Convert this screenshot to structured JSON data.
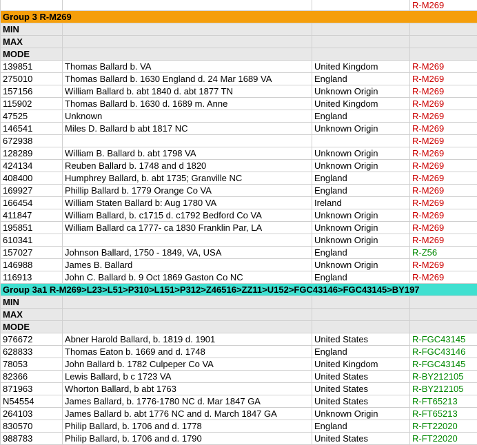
{
  "colors": {
    "group3_bg": "#f59e0b",
    "group3a1_bg": "#40e0d0",
    "stat_bg": "#e8e8e8",
    "border": "#d0d0d0",
    "hg_red": "#cc0000",
    "hg_green": "#008800"
  },
  "partial_row": {
    "hg": "R-M269",
    "hg_class": "hg-red"
  },
  "sections": [
    {
      "header": "Group 3 R-M269",
      "bg": "#f59e0b",
      "stats": [
        "MIN",
        "MAX",
        "MODE"
      ],
      "rows": [
        {
          "id": "139851",
          "name": "Thomas Ballard b. VA",
          "origin": "United Kingdom",
          "hg": "R-M269",
          "hg_class": "hg-red"
        },
        {
          "id": "275010",
          "name": "Thomas Ballard b. 1630 England d. 24 Mar 1689 VA",
          "origin": "England",
          "hg": "R-M269",
          "hg_class": "hg-red"
        },
        {
          "id": "157156",
          "name": "William Ballard b. abt 1840 d. abt 1877 TN",
          "origin": "Unknown Origin",
          "hg": "R-M269",
          "hg_class": "hg-red"
        },
        {
          "id": "115902",
          "name": "Thomas Ballard b. 1630 d. 1689 m. Anne",
          "origin": "United Kingdom",
          "hg": "R-M269",
          "hg_class": "hg-red"
        },
        {
          "id": "47525",
          "name": "Unknown",
          "origin": "England",
          "hg": "R-M269",
          "hg_class": "hg-red"
        },
        {
          "id": "146541",
          "name": "Miles D. Ballard b abt 1817 NC",
          "origin": "Unknown Origin",
          "hg": "R-M269",
          "hg_class": "hg-red"
        },
        {
          "id": "672938",
          "name": "",
          "origin": "",
          "hg": "R-M269",
          "hg_class": "hg-red"
        },
        {
          "id": "128289",
          "name": "William B. Ballard b. abt 1798 VA",
          "origin": "Unknown Origin",
          "hg": "R-M269",
          "hg_class": "hg-red"
        },
        {
          "id": "424134",
          "name": "Reuben Ballard b. 1748 and d 1820",
          "origin": "Unknown Origin",
          "hg": "R-M269",
          "hg_class": "hg-red"
        },
        {
          "id": "408400",
          "name": "Humphrey Ballard, b. abt 1735; Granville NC",
          "origin": "England",
          "hg": "R-M269",
          "hg_class": "hg-red"
        },
        {
          "id": "169927",
          "name": "Phillip Ballard b. 1779 Orange Co VA",
          "origin": "England",
          "hg": "R-M269",
          "hg_class": "hg-red"
        },
        {
          "id": "166454",
          "name": "William Staten Ballard b: Aug 1780 VA",
          "origin": "Ireland",
          "hg": "R-M269",
          "hg_class": "hg-red"
        },
        {
          "id": "411847",
          "name": "William Ballard, b. c1715 d. c1792 Bedford Co VA",
          "origin": "Unknown Origin",
          "hg": "R-M269",
          "hg_class": "hg-red"
        },
        {
          "id": "195851",
          "name": "William Ballard ca 1777- ca 1830 Franklin Par, LA",
          "origin": "Unknown Origin",
          "hg": "R-M269",
          "hg_class": "hg-red"
        },
        {
          "id": "610341",
          "name": "",
          "origin": "Unknown Origin",
          "hg": "R-M269",
          "hg_class": "hg-red"
        },
        {
          "id": "157027",
          "name": "Johnson Ballard, 1750 - 1849, VA, USA",
          "origin": "England",
          "hg": "R-Z56",
          "hg_class": "hg-green"
        },
        {
          "id": "146988",
          "name": "James B. Ballard",
          "origin": "Unknown Origin",
          "hg": "R-M269",
          "hg_class": "hg-red"
        },
        {
          "id": "116913",
          "name": "John C. Ballard b. 9 Oct 1869 Gaston Co NC",
          "origin": "England",
          "hg": "R-M269",
          "hg_class": "hg-red"
        }
      ]
    },
    {
      "header": "Group 3a1 R-M269>L23>L51>P310>L151>P312>Z46516>ZZ11>U152>FGC43146>FGC43145>BY197",
      "bg": "#40e0d0",
      "stats": [
        "MIN",
        "MAX",
        "MODE"
      ],
      "rows": [
        {
          "id": "976672",
          "name": "Abner Harold Ballard, b. 1819 d. 1901",
          "origin": "United States",
          "hg": "R-FGC43145",
          "hg_class": "hg-green"
        },
        {
          "id": "628833",
          "name": "Thomas Eaton b. 1669 and d. 1748",
          "origin": "England",
          "hg": "R-FGC43146",
          "hg_class": "hg-green"
        },
        {
          "id": "78053",
          "name": "John Ballard b. 1782 Culpeper Co VA",
          "origin": "United Kingdom",
          "hg": "R-FGC43145",
          "hg_class": "hg-green"
        },
        {
          "id": "82366",
          "name": "Lewis Ballard, b c 1723 VA",
          "origin": "United States",
          "hg": "R-BY212105",
          "hg_class": "hg-green"
        },
        {
          "id": "871963",
          "name": "Whorton Ballard, b abt 1763",
          "origin": "United States",
          "hg": "R-BY212105",
          "hg_class": "hg-green"
        },
        {
          "id": "N54554",
          "name": "James Ballard, b. 1776-1780 NC d. Mar 1847 GA",
          "origin": "United States",
          "hg": "R-FT65213",
          "hg_class": "hg-green"
        },
        {
          "id": "264103",
          "name": "James Ballard b. abt 1776 NC and d. March 1847 GA",
          "origin": "Unknown Origin",
          "hg": "R-FT65213",
          "hg_class": "hg-green"
        },
        {
          "id": "830570",
          "name": "Philip Ballard, b. 1706 and d. 1778",
          "origin": "England",
          "hg": "R-FT22020",
          "hg_class": "hg-green"
        },
        {
          "id": "988783",
          "name": "Philip Ballard, b. 1706 and d. 1790",
          "origin": "United States",
          "hg": "R-FT22020",
          "hg_class": "hg-green"
        }
      ]
    }
  ]
}
